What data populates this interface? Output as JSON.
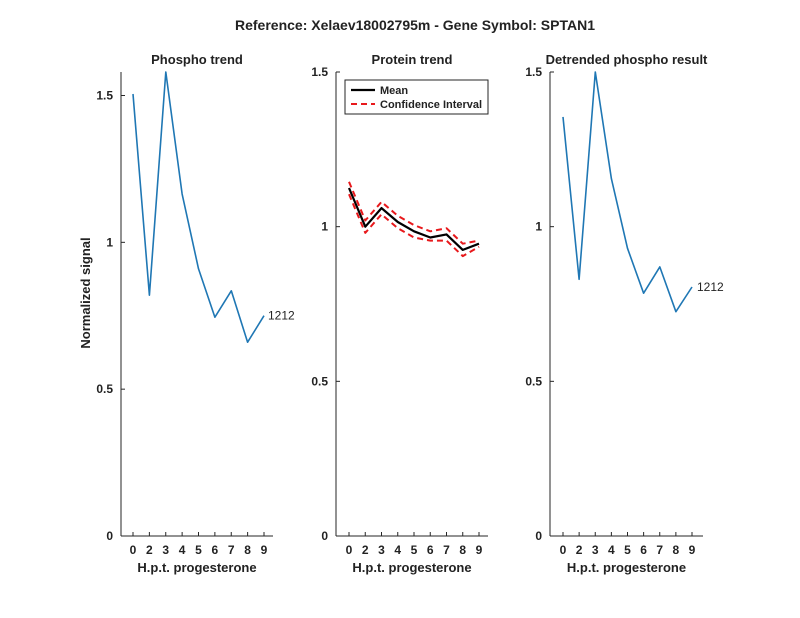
{
  "figure_title": "Reference:  Xelaev18002795m - Gene Symbol:  SPTAN1",
  "colors": {
    "series_blue": "#1f77b4",
    "mean_black": "#000000",
    "ci_red": "#e8191c",
    "axis": "#262626"
  },
  "chart_data": [
    {
      "type": "line",
      "title": "Phospho trend",
      "xlabel": "H.p.t. progesterone",
      "ylabel": "Normalized signal",
      "x_ticks": [
        "0",
        "2",
        "3",
        "4",
        "5",
        "6",
        "7",
        "8",
        "9"
      ],
      "y_ticks": [
        "0",
        "0.5",
        "1",
        "1.5"
      ],
      "ylim": [
        0,
        1.58
      ],
      "grid": false,
      "series": [
        {
          "values": [
            1.505,
            0.82,
            1.58,
            1.165,
            0.91,
            0.745,
            0.835,
            0.66,
            0.75
          ]
        }
      ],
      "annotation": "1212"
    },
    {
      "type": "line",
      "title": "Protein trend",
      "xlabel": "H.p.t. progesterone",
      "ylabel": "",
      "x_ticks": [
        "0",
        "2",
        "3",
        "4",
        "5",
        "6",
        "7",
        "8",
        "9"
      ],
      "y_ticks": [
        "0",
        "0.5",
        "1",
        "1.5"
      ],
      "ylim": [
        0,
        1.5
      ],
      "grid": false,
      "legend_position": "top-left",
      "series": [
        {
          "name": "Mean",
          "values": [
            1.125,
            1.0,
            1.06,
            1.015,
            0.985,
            0.965,
            0.975,
            0.925,
            0.945
          ]
        },
        {
          "name": "Confidence Interval",
          "values": [
            1.145,
            1.02,
            1.08,
            1.035,
            1.005,
            0.985,
            0.995,
            0.945,
            0.955
          ]
        },
        {
          "values": [
            1.105,
            0.98,
            1.04,
            0.995,
            0.965,
            0.955,
            0.955,
            0.905,
            0.935
          ]
        }
      ]
    },
    {
      "type": "line",
      "title": "Detrended phospho result",
      "xlabel": "H.p.t. progesterone",
      "ylabel": "",
      "x_ticks": [
        "0",
        "2",
        "3",
        "4",
        "5",
        "6",
        "7",
        "8",
        "9"
      ],
      "y_ticks": [
        "0",
        "0.5",
        "1",
        "1.5"
      ],
      "ylim": [
        0,
        1.5
      ],
      "grid": false,
      "series": [
        {
          "values": [
            1.355,
            0.83,
            1.5,
            1.155,
            0.93,
            0.785,
            0.87,
            0.725,
            0.805
          ]
        }
      ],
      "annotation": "1212"
    }
  ]
}
